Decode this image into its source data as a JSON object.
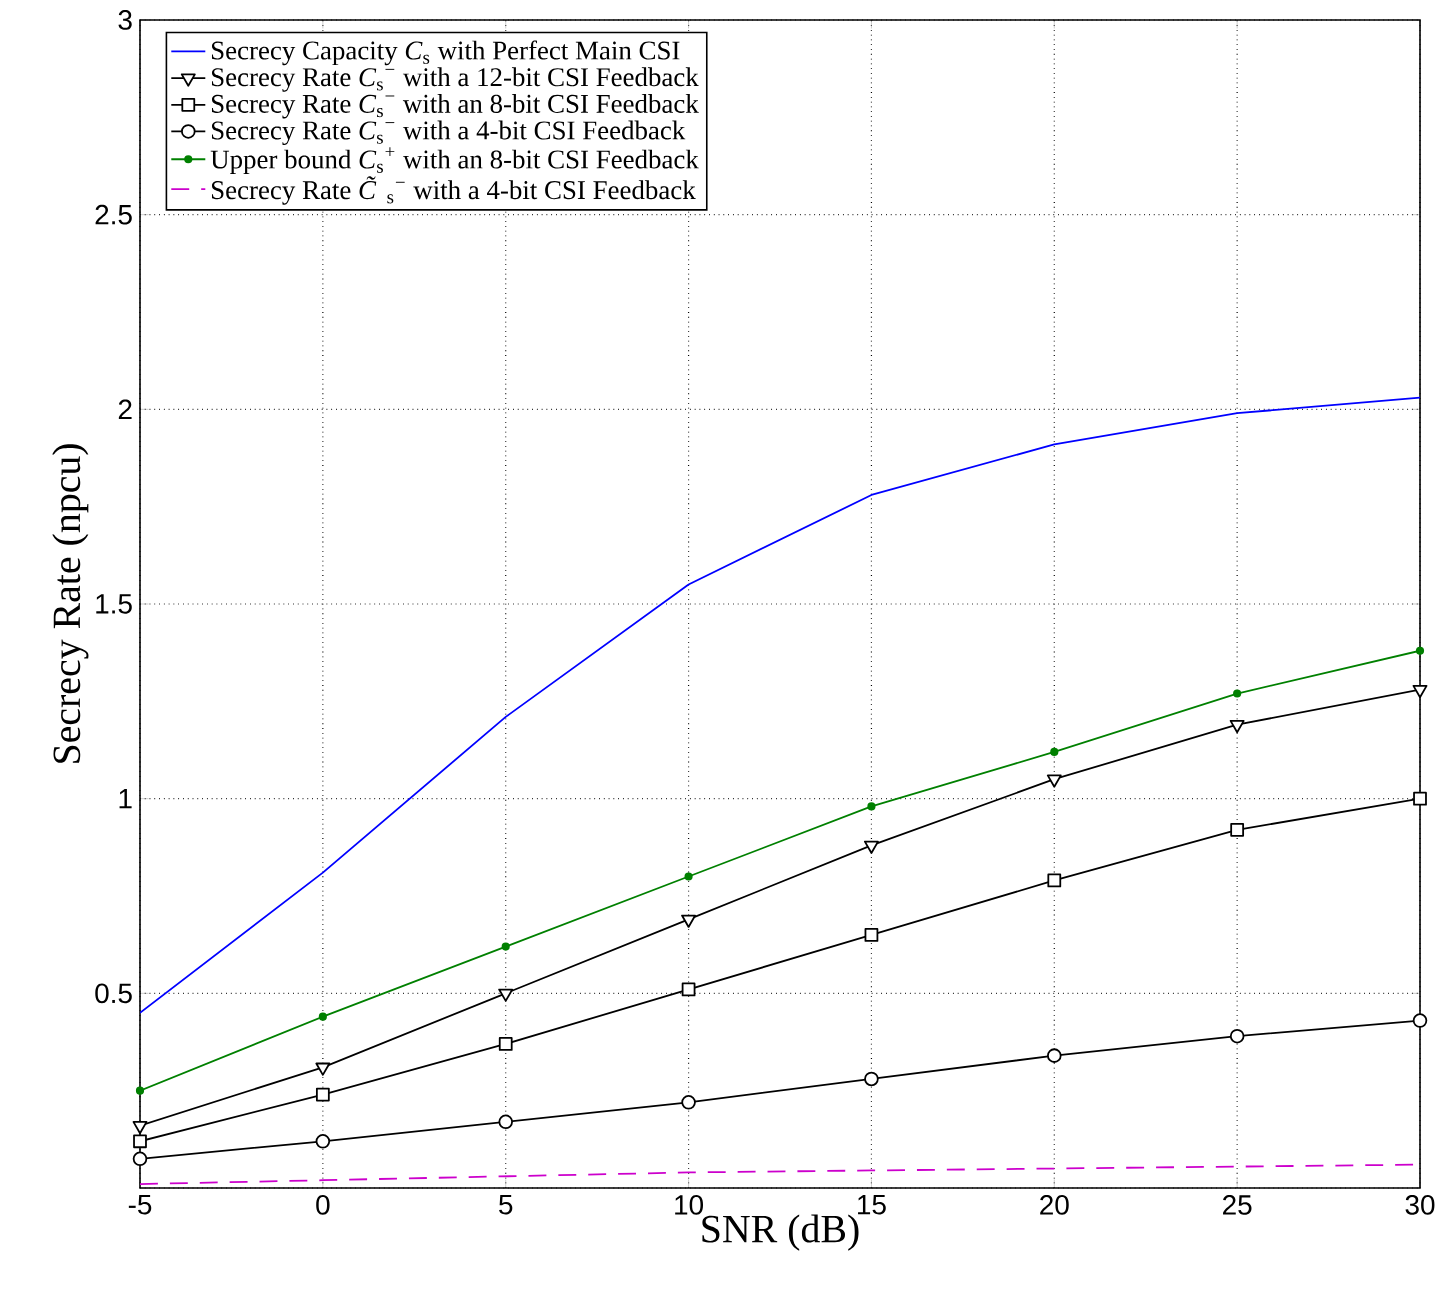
{
  "chart_data": {
    "type": "line",
    "xlabel": "SNR (dB)",
    "ylabel": "Secrecy Rate (npcu)",
    "x": [
      -5,
      0,
      5,
      10,
      15,
      20,
      25,
      30
    ],
    "xlim": [
      -5,
      30
    ],
    "xticks": [
      -5,
      0,
      5,
      10,
      15,
      20,
      25,
      30
    ],
    "ylim": [
      0,
      3
    ],
    "yticks": [
      {
        "value": 0,
        "label": null
      },
      0.5,
      1,
      1.5,
      2,
      2.5,
      3
    ],
    "grid": true,
    "legend": "top left",
    "series": [
      {
        "name": "Secrecy Capacity *C*$_{s}$ with Perfect Main CSI",
        "color": "#0000ff",
        "marker": "none",
        "line_style": "solid",
        "values": [
          0.45,
          0.81,
          1.21,
          1.55,
          1.78,
          1.91,
          1.99,
          2.03
        ]
      },
      {
        "name": "Secrecy Rate *C*$_{s}$$^{−}$ with a 12-bit CSI Feedback",
        "color": "#000000",
        "marker": "triangle",
        "line_style": "solid",
        "values": [
          0.16,
          0.31,
          0.5,
          0.69,
          0.88,
          1.05,
          1.19,
          1.28
        ]
      },
      {
        "name": "Secrecy Rate *C*$_{s}$$^{−}$ with an 8-bit CSI Feedback",
        "color": "#000000",
        "marker": "square",
        "line_style": "solid",
        "values": [
          0.12,
          0.24,
          0.37,
          0.51,
          0.65,
          0.79,
          0.92,
          1.0
        ]
      },
      {
        "name": "Secrecy Rate *C*$_{s}$$^{−}$ with a 4-bit CSI Feedback",
        "color": "#000000",
        "marker": "circle",
        "line_style": "solid",
        "values": [
          0.075,
          0.12,
          0.17,
          0.22,
          0.28,
          0.34,
          0.39,
          0.43
        ]
      },
      {
        "name": "Upper bound *C*$_{s}$$^{+}$ with an 8-bit CSI Feedback",
        "color": "#008000",
        "marker": "circle",
        "line_style": "solid",
        "values": [
          0.25,
          0.44,
          0.62,
          0.8,
          0.98,
          1.12,
          1.27,
          1.38
        ]
      },
      {
        "name": "Secrecy Rate *C̃*$_{s}$$^{−}$ with a 4-bit CSI Feedback",
        "color": "#cc00cc",
        "marker": "none",
        "line_style": "dashed",
        "values": [
          0.01,
          0.02,
          0.03,
          0.04,
          0.045,
          0.05,
          0.055,
          0.06
        ]
      }
    ]
  }
}
